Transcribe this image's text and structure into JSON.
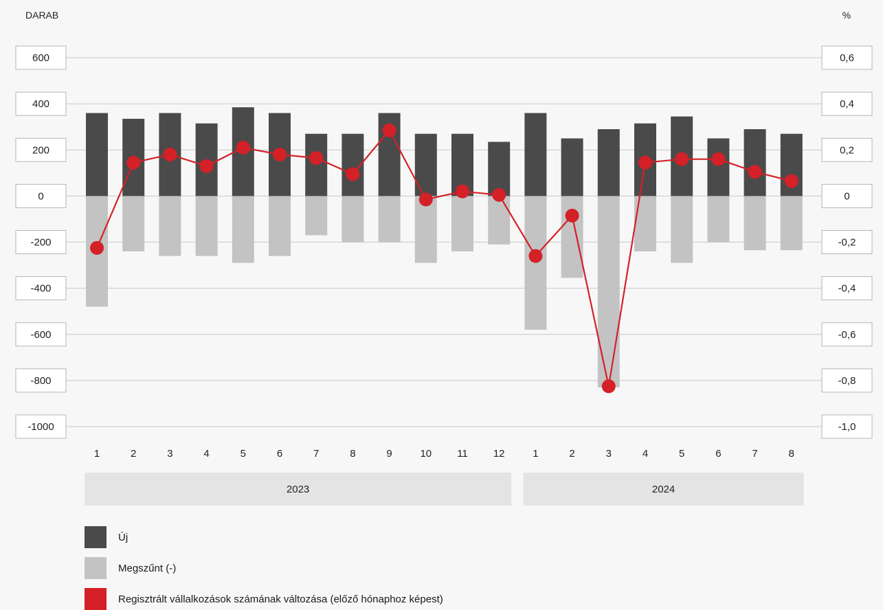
{
  "chart_data": {
    "type": "bar",
    "left_axis_label": "DARAB",
    "right_axis_label": "%",
    "left_ticks": [
      "600",
      "400",
      "200",
      "0",
      "-200",
      "-400",
      "-600",
      "-800",
      "-1000"
    ],
    "right_ticks": [
      "0,6",
      "0,4",
      "0,2",
      "0",
      "-0,2",
      "-0,4",
      "-0,6",
      "-0,8",
      "-1,0"
    ],
    "left_ylim": [
      -1000,
      600
    ],
    "right_ylim": [
      -1.0,
      0.6
    ],
    "categories": [
      "1",
      "2",
      "3",
      "4",
      "5",
      "6",
      "7",
      "8",
      "9",
      "10",
      "11",
      "12",
      "1",
      "2",
      "3",
      "4",
      "5",
      "6",
      "7",
      "8"
    ],
    "year_groups": [
      {
        "label": "2023",
        "count": 12
      },
      {
        "label": "2024",
        "count": 8
      }
    ],
    "series": [
      {
        "name": "Új",
        "type": "bar",
        "axis": "left",
        "color": "#4a4a4a",
        "values": [
          360,
          335,
          360,
          315,
          385,
          360,
          270,
          270,
          360,
          270,
          270,
          235,
          360,
          250,
          290,
          315,
          345,
          250,
          290,
          270
        ]
      },
      {
        "name": "Megszűnt (-)",
        "type": "bar",
        "axis": "left",
        "color": "#c3c3c4",
        "values": [
          -480,
          -240,
          -260,
          -260,
          -290,
          -260,
          -170,
          -200,
          -200,
          -290,
          -240,
          -210,
          -580,
          -355,
          -830,
          -240,
          -290,
          -200,
          -235,
          -235
        ]
      },
      {
        "name": "Regisztrált vállalkozások számának változása (előző hónaphoz képest)",
        "type": "line",
        "axis": "right",
        "color": "#d42027",
        "values": [
          -0.225,
          0.145,
          0.18,
          0.13,
          0.21,
          0.18,
          0.165,
          0.095,
          0.285,
          -0.015,
          0.02,
          0.005,
          -0.26,
          -0.085,
          -0.825,
          0.145,
          0.16,
          0.16,
          0.105,
          0.065
        ]
      }
    ],
    "grid": true
  },
  "legend": [
    {
      "label": "Új",
      "color": "#4a4a4a"
    },
    {
      "label": "Megszűnt (-)",
      "color": "#c3c3c4"
    },
    {
      "label": "Regisztrált vállalkozások számának változása (előző hónaphoz képest)",
      "color": "#d42027"
    }
  ]
}
